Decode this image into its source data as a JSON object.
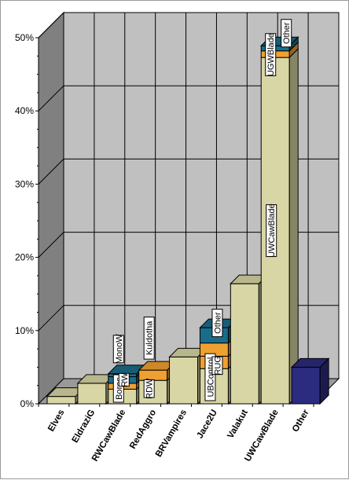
{
  "chart_data": {
    "type": "bar",
    "stacked": true,
    "three_d": true,
    "title": "",
    "xlabel": "",
    "ylabel": "",
    "ylim": [
      0,
      50
    ],
    "y_ticks": [
      "0%",
      "10%",
      "20%",
      "30%",
      "40%",
      "50%"
    ],
    "grid": true,
    "categories": [
      "Elves",
      "EldraziG",
      "RWCawBlade",
      "RedAggro",
      "BRVampires",
      "Jace2U",
      "Valakut",
      "UWCawBlade",
      "Other"
    ],
    "bars": [
      {
        "category": "Elves",
        "segments": [
          {
            "value": 1.0,
            "color": "#d8d6a4",
            "label": ""
          }
        ]
      },
      {
        "category": "EldraziG",
        "segments": [
          {
            "value": 2.8,
            "color": "#d8d6a4",
            "label": ""
          }
        ]
      },
      {
        "category": "RWCawBlade",
        "segments": [
          {
            "value": 2.0,
            "color": "#d8d6a4",
            "label": "Boros"
          },
          {
            "value": 0.8,
            "color": "#f0a030",
            "label": ""
          },
          {
            "value": 0.9,
            "color": "#1a6d8a",
            "label": "RW"
          },
          {
            "value": 0.4,
            "color": "#1a6d8a",
            "label": "MonoW"
          }
        ]
      },
      {
        "category": "RedAggro",
        "segments": [
          {
            "value": 3.2,
            "color": "#d8d6a4",
            "label": "RDW"
          },
          {
            "value": 1.4,
            "color": "#f0a030",
            "label": "Kuldotha"
          }
        ]
      },
      {
        "category": "BRVampires",
        "segments": [
          {
            "value": 6.4,
            "color": "#d8d6a4",
            "label": ""
          }
        ]
      },
      {
        "category": "Jace2U",
        "segments": [
          {
            "value": 4.8,
            "color": "#d8d6a4",
            "label": "UBControl"
          },
          {
            "value": 1.7,
            "color": "#f0a030",
            "label": "RUG"
          },
          {
            "value": 1.8,
            "color": "#f0a030",
            "label": ""
          },
          {
            "value": 2.1,
            "color": "#1a6d8a",
            "label": "Other"
          }
        ]
      },
      {
        "category": "Valakut",
        "segments": [
          {
            "value": 16.4,
            "color": "#d8d6a4",
            "label": ""
          }
        ]
      },
      {
        "category": "UWCawBlade",
        "segments": [
          {
            "value": 47.3,
            "color": "#d8d6a4",
            "label": "UWCawBlade"
          },
          {
            "value": 0.9,
            "color": "#f0a030",
            "label": "UGWBlade"
          },
          {
            "value": 0.7,
            "color": "#1a6d8a",
            "label": "Other"
          }
        ]
      },
      {
        "category": "Other",
        "segments": [
          {
            "value": 5.0,
            "color": "#2b2b80",
            "label": ""
          }
        ]
      }
    ],
    "colors": {
      "plot_back": "#c0c0c0",
      "left_wall": "#808080",
      "floor": "#9a9a9a",
      "grid_line": "#000000"
    }
  }
}
